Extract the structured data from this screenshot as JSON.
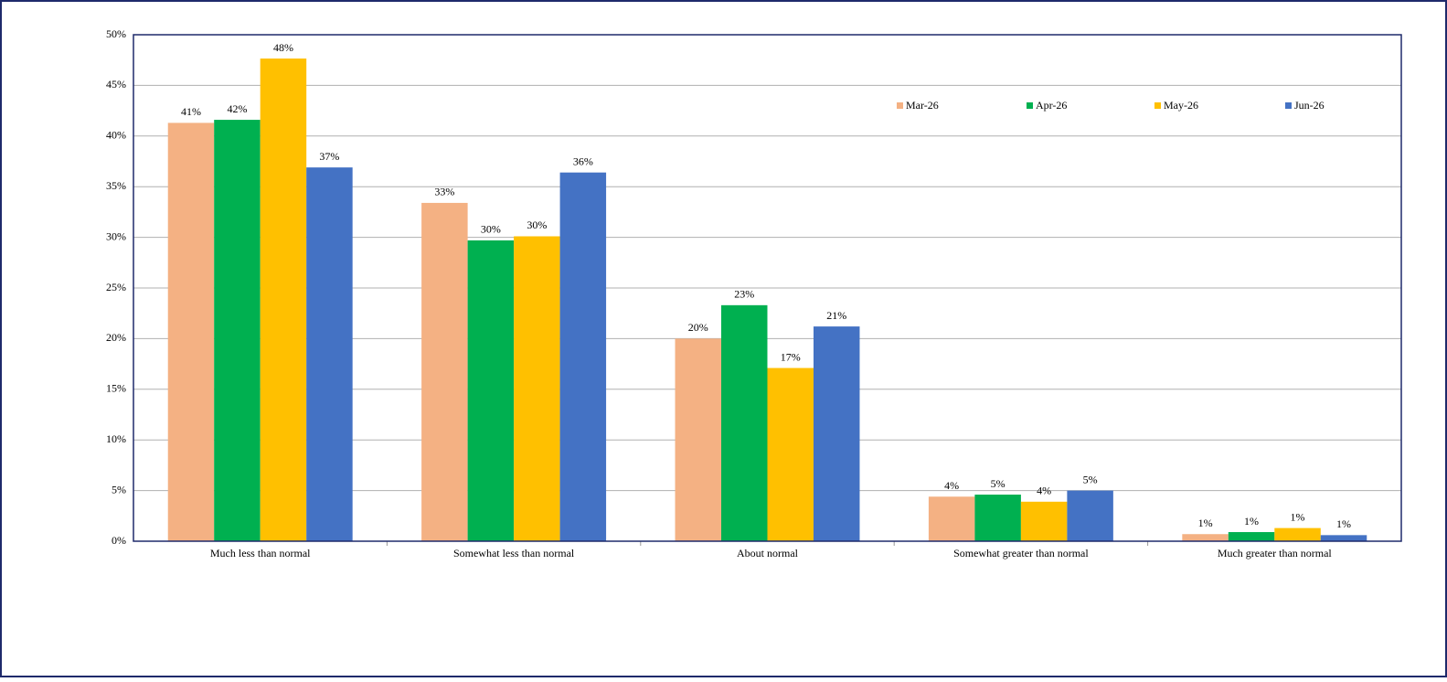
{
  "chart_data": {
    "type": "bar",
    "categories": [
      "Much less than normal",
      "Somewhat less than normal",
      "About normal",
      "Somewhat greater than normal",
      "Much greater than normal"
    ],
    "series": [
      {
        "name": "Mar-26",
        "color": "#f4b183",
        "values": [
          41.3,
          33.4,
          20.0,
          4.4,
          0.7
        ],
        "value_labels": [
          "41%",
          "33%",
          "20%",
          "4%",
          "1%"
        ]
      },
      {
        "name": "Apr-26",
        "color": "#00b050",
        "values": [
          41.6,
          29.7,
          23.3,
          4.6,
          0.9
        ],
        "value_labels": [
          "42%",
          "30%",
          "23%",
          "5%",
          "1%"
        ]
      },
      {
        "name": "May-26",
        "color": "#ffc000",
        "values": [
          47.65,
          30.1,
          17.1,
          3.9,
          1.3
        ],
        "value_labels": [
          "48%",
          "30%",
          "17%",
          "4%",
          "1%"
        ]
      },
      {
        "name": "Jun-26",
        "color": "#4472c4",
        "values": [
          36.9,
          36.4,
          21.2,
          5.0,
          0.6
        ],
        "value_labels": [
          "37%",
          "36%",
          "21%",
          "5%",
          "1%"
        ]
      }
    ],
    "ylim": [
      0,
      50
    ],
    "yticks": [
      {
        "value": 0,
        "label": "0%"
      },
      {
        "value": 5,
        "label": "5%"
      },
      {
        "value": 10,
        "label": "10%"
      },
      {
        "value": 15,
        "label": "15%"
      },
      {
        "value": 20,
        "label": "20%"
      },
      {
        "value": 25,
        "label": "25%"
      },
      {
        "value": 30,
        "label": "30%"
      },
      {
        "value": 35,
        "label": "35%"
      },
      {
        "value": 40,
        "label": "40%"
      },
      {
        "value": 45,
        "label": "45%"
      },
      {
        "value": 50,
        "label": "50%"
      }
    ],
    "grid": true,
    "legend": "top-right"
  }
}
